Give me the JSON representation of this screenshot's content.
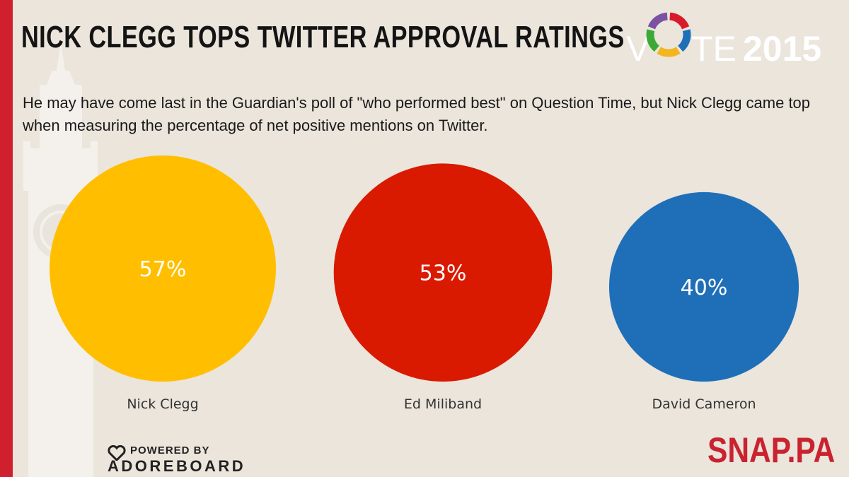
{
  "header": {
    "title": "NICK CLEGG TOPS TWITTER APPROVAL RATINGS",
    "subtitle": "He may have come last in the Guardian's poll of \"who performed best\" on Question Time, but Nick Clegg came top when measuring the percentage of net positive mentions on Twitter."
  },
  "logo": {
    "vote_v": "V",
    "vote_te": "TE",
    "vote_year": "2015",
    "ring_colors": [
      "#d81b2a",
      "#1e6fba",
      "#f3b61f",
      "#3aaa35",
      "#7b52a3"
    ]
  },
  "chart_data": {
    "type": "bubble",
    "categories": [
      "Nick Clegg",
      "Ed Miliband",
      "David Cameron"
    ],
    "values": [
      57,
      53,
      40
    ],
    "value_labels": [
      "57%",
      "53%",
      "40%"
    ],
    "colors": [
      "#ffbf00",
      "#d91a00",
      "#1f6fb8"
    ],
    "value_label_color": "#ffffff"
  },
  "footer": {
    "powered_label": "POWERED BY",
    "powered_brand": "ADOREBOARD",
    "snap_brand": "SNAP.PA"
  }
}
